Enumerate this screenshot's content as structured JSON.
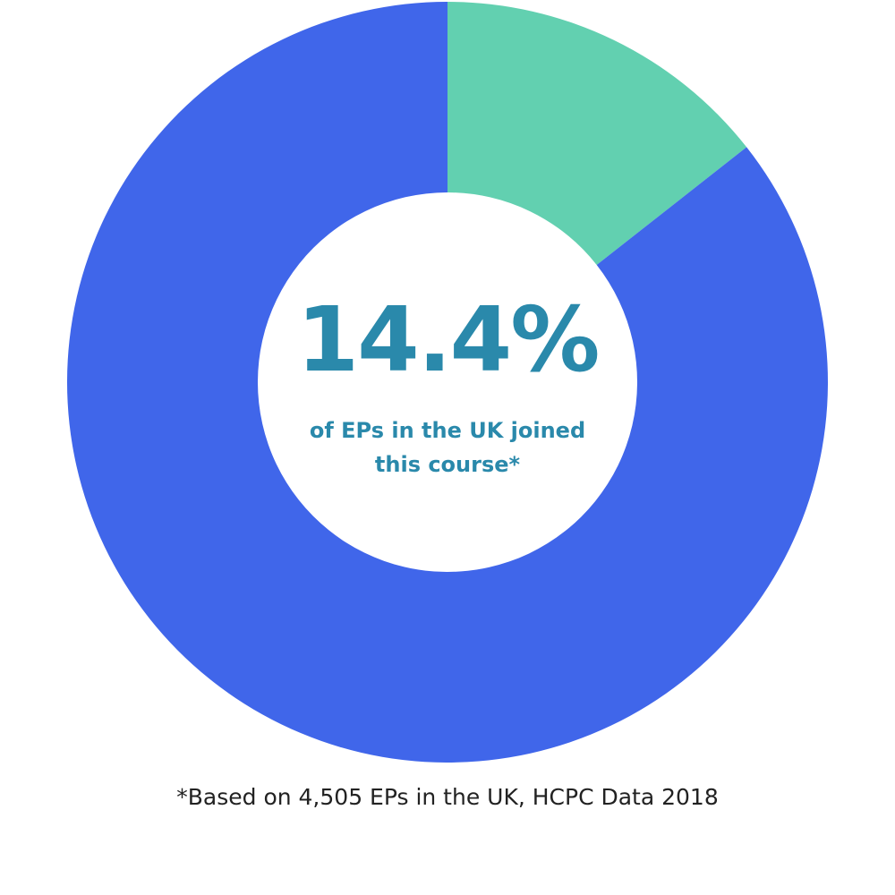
{
  "chart_data": {
    "type": "donut",
    "values": [
      14.4,
      85.6
    ],
    "value_labels": [
      "14.4%",
      null
    ],
    "colors": [
      "#62d0b0",
      "#4066ea"
    ],
    "annotation": "of EPs in the UK joined this course*",
    "footnote": "*Based on 4,505 EPs in the UK, HCPC Data 2018"
  }
}
